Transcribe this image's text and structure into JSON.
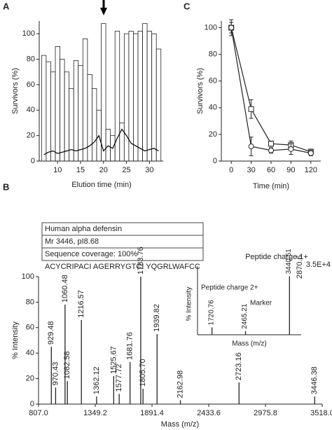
{
  "chart_data": [
    {
      "type": "bar",
      "panel_label": "A",
      "ylabel": "Survivors (%)",
      "xlabel": "Elution time (min)",
      "x": [
        7,
        8,
        9,
        10,
        11,
        12,
        13,
        14,
        15,
        16,
        17,
        18,
        19,
        20,
        21,
        22,
        23,
        24,
        25,
        26,
        27,
        28,
        29,
        30,
        31,
        32
      ],
      "values": [
        83,
        78,
        70,
        90,
        80,
        70,
        57,
        79,
        75,
        96,
        68,
        57,
        40,
        108,
        25,
        20,
        102,
        30,
        100,
        102,
        100,
        102,
        108,
        102,
        100,
        88
      ],
      "trace": [
        5,
        7,
        8,
        6,
        7,
        8,
        9,
        8,
        9,
        10,
        12,
        15,
        20,
        8,
        12,
        10,
        18,
        25,
        20,
        14,
        12,
        10,
        8,
        9,
        10,
        8
      ],
      "color": "#ffffff",
      "trace_color": "#000000",
      "xlim": [
        6,
        33
      ],
      "ylim": [
        0,
        110
      ],
      "xticks": [
        10,
        15,
        20,
        25,
        30
      ],
      "yticks": [
        0,
        20,
        40,
        60,
        80,
        100
      ]
    },
    {
      "type": "line",
      "panel_label": "C",
      "ylabel": "Survivors (%)",
      "xlabel": "Time (min)",
      "x": [
        0,
        30,
        60,
        90,
        120
      ],
      "xlim": [
        -15,
        135
      ],
      "ylim": [
        0,
        105
      ],
      "xticks": [
        0,
        30,
        60,
        90,
        120
      ],
      "yticks": [
        0,
        20,
        40,
        60,
        80,
        100
      ],
      "color": "#222222",
      "series": [
        {
          "marker": "square",
          "values": [
            100,
            39,
            13,
            12,
            7
          ],
          "errors": [
            6,
            7,
            2,
            3,
            2
          ]
        },
        {
          "marker": "circle",
          "values": [
            100,
            11,
            8,
            9,
            6
          ],
          "errors": [
            4,
            7,
            2,
            4,
            2
          ]
        }
      ]
    },
    {
      "type": "spectrum",
      "panel_label": "B",
      "ylabel": "% Intensity",
      "xlabel": "Mass (m/z)",
      "info_box": [
        "Human alpha defensin",
        "Mr 3446, pI8.68",
        "Sequence coverage: 100%",
        "ACYCRIPACI AGERRYGTCI YQGRLWAFCC"
      ],
      "scale_label": "3.5E+4",
      "xlim": [
        807,
        3518
      ],
      "ylim": [
        0,
        100
      ],
      "xticks": [
        {
          "value": 807,
          "label": "807.0"
        },
        1349.2,
        1891.4,
        2433.6,
        2975.8,
        {
          "value": 3518,
          "label": "3518.0"
        }
      ],
      "yticks": [
        0,
        20,
        40,
        60,
        80,
        100
      ],
      "x": [
        929.48,
        970.43,
        1060.48,
        1082.58,
        1216.57,
        1362.12,
        1525.67,
        1577.72,
        1681.76,
        1783.76,
        1805.7,
        1939.82,
        2162.98,
        2723.16,
        3446.38
      ],
      "x_labels": [
        "929.48",
        "970.43",
        "1060.48",
        "1082.58",
        "1216.57",
        "1362.12",
        "1525.67",
        "1577.72",
        "1681.76",
        "1783.76",
        "1805.70",
        "1939.82",
        "2162.98",
        "2723.16",
        "3446.38"
      ],
      "values": [
        45,
        13,
        78,
        18,
        66,
        6,
        22,
        8,
        33,
        100,
        12,
        55,
        3,
        17,
        6
      ],
      "inset": {
        "title": "Peptide charge 1+",
        "annotations": [
          "Peptide charge 2+",
          "Marker"
        ],
        "ylabel": "% Intensity",
        "xlabel": "Mass (m/z)",
        "corner_label": "2870.6",
        "xlim": [
          1400,
          3700
        ],
        "ylim": [
          0,
          100
        ],
        "x": [
          1720.76,
          2465.21,
          3440.51
        ],
        "x_labels": [
          "1720.76",
          "2465.21",
          "3440.51"
        ],
        "values": [
          12,
          6,
          95
        ]
      }
    }
  ]
}
